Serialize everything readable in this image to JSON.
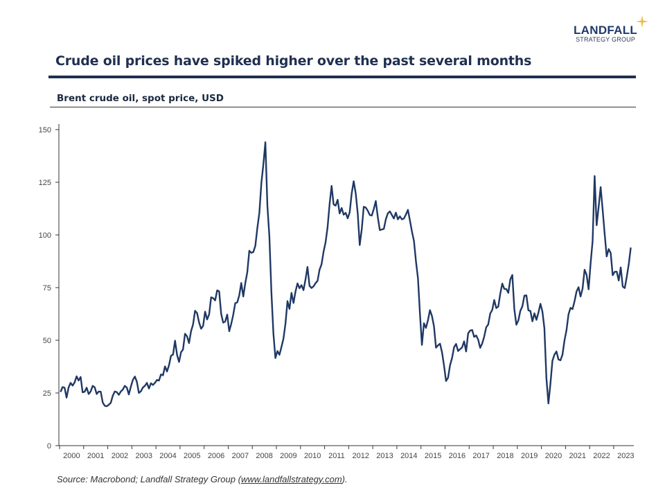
{
  "header": {
    "title": "Crude oil prices have spiked higher over the past several months",
    "subtitle": "Brent crude oil, spot price, USD",
    "logo_line1": "LANDFALL",
    "logo_line2": "STRATEGY GROUP",
    "brand_color": "#1f3050",
    "star_color": "#e8c04a"
  },
  "footer": {
    "source_prefix": "Source: Macrobond; Landfall Strategy Group (",
    "source_link": "www.landfallstrategy.com",
    "source_suffix": ")."
  },
  "chart_data": {
    "type": "line",
    "title": "Crude oil prices have spiked higher over the past several months",
    "subtitle": "Brent crude oil, spot price, USD",
    "xlabel": "",
    "ylabel": "",
    "ylim": [
      0,
      150
    ],
    "yticks": [
      0,
      25,
      50,
      75,
      100,
      125,
      150
    ],
    "xticks": [
      "2000",
      "2001",
      "2002",
      "2003",
      "2004",
      "2005",
      "2006",
      "2007",
      "2008",
      "2009",
      "2010",
      "2011",
      "2012",
      "2013",
      "2014",
      "2015",
      "2016",
      "2017",
      "2018",
      "2019",
      "2020",
      "2021",
      "2022",
      "2023"
    ],
    "grid": false,
    "legend": "none",
    "line_color": "#1f3864",
    "x_start": "2000-01",
    "frequency": "monthly",
    "series": [
      {
        "values": [
          25.5,
          27.8,
          27.5,
          22.8,
          27.6,
          29.8,
          28.5,
          30.0,
          32.9,
          30.9,
          32.6,
          25.3,
          25.6,
          27.5,
          24.5,
          25.7,
          28.4,
          27.7,
          24.5,
          25.7,
          25.6,
          20.5,
          18.9,
          18.7,
          19.4,
          20.3,
          23.7,
          25.7,
          25.4,
          24.1,
          25.7,
          26.6,
          28.4,
          27.5,
          24.3,
          28.0,
          31.2,
          32.8,
          30.3,
          25.0,
          25.8,
          27.6,
          28.4,
          29.8,
          27.1,
          29.6,
          28.8,
          29.8,
          31.2,
          30.9,
          33.8,
          33.4,
          37.6,
          35.2,
          38.2,
          42.7,
          43.2,
          49.8,
          43.1,
          39.7,
          44.3,
          45.6,
          53.1,
          51.9,
          48.7,
          54.3,
          57.5,
          64.0,
          62.9,
          58.5,
          55.5,
          56.8,
          63.6,
          59.9,
          62.3,
          70.4,
          70.0,
          68.9,
          73.7,
          73.2,
          62.5,
          58.4,
          58.9,
          62.2,
          54.3,
          57.8,
          62.1,
          67.6,
          68.0,
          71.3,
          77.2,
          70.8,
          77.1,
          82.3,
          92.5,
          91.5,
          91.9,
          94.8,
          103.3,
          110.4,
          124.6,
          133.5,
          144.0,
          113.9,
          99.1,
          72.8,
          53.2,
          41.6,
          44.9,
          43.1,
          46.8,
          50.8,
          57.9,
          68.6,
          64.9,
          72.5,
          67.7,
          73.2,
          77.0,
          74.7,
          76.2,
          73.8,
          78.8,
          84.8,
          75.9,
          74.8,
          75.6,
          77.1,
          78.2,
          83.5,
          86.1,
          92.0,
          96.5,
          103.7,
          114.6,
          123.3,
          114.5,
          113.9,
          116.7,
          110.2,
          112.8,
          109.6,
          110.5,
          107.9,
          110.7,
          119.7,
          125.5,
          119.8,
          110.3,
          95.2,
          102.6,
          113.4,
          113.0,
          111.5,
          109.5,
          109.2,
          112.3,
          116.1,
          108.5,
          102.3,
          102.6,
          102.9,
          107.4,
          110.3,
          111.2,
          109.5,
          107.8,
          110.6,
          107.4,
          108.8,
          107.4,
          107.8,
          109.7,
          111.9,
          106.8,
          101.6,
          97.1,
          87.4,
          79.4,
          62.3,
          47.8,
          58.1,
          55.9,
          59.5,
          64.3,
          61.5,
          56.6,
          46.5,
          47.6,
          48.4,
          44.3,
          38.0,
          30.7,
          32.2,
          38.2,
          41.6,
          46.7,
          48.3,
          44.9,
          45.8,
          46.6,
          49.5,
          44.7,
          53.3,
          54.6,
          54.9,
          51.6,
          52.3,
          50.3,
          46.4,
          48.5,
          51.7,
          56.2,
          57.5,
          62.7,
          64.4,
          69.1,
          65.3,
          66.0,
          72.1,
          76.9,
          74.4,
          74.3,
          72.5,
          78.9,
          81.0,
          64.8,
          57.4,
          59.4,
          64.0,
          66.1,
          71.2,
          71.3,
          64.2,
          63.9,
          59.0,
          62.8,
          59.7,
          63.2,
          67.3,
          63.7,
          55.7,
          32.0,
          20.0,
          29.4,
          40.3,
          43.2,
          44.7,
          40.9,
          40.5,
          43.2,
          49.9,
          54.8,
          62.3,
          65.4,
          64.8,
          68.5,
          73.2,
          75.2,
          70.8,
          74.5,
          83.5,
          81.1,
          74.2,
          86.5,
          97.1,
          128.0,
          104.6,
          113.3,
          122.7,
          111.9,
          100.5,
          89.8,
          93.3,
          91.4,
          80.9,
          82.5,
          82.6,
          78.4,
          84.6,
          75.5,
          74.8,
          80.1,
          86.2,
          94.0
        ]
      }
    ]
  }
}
